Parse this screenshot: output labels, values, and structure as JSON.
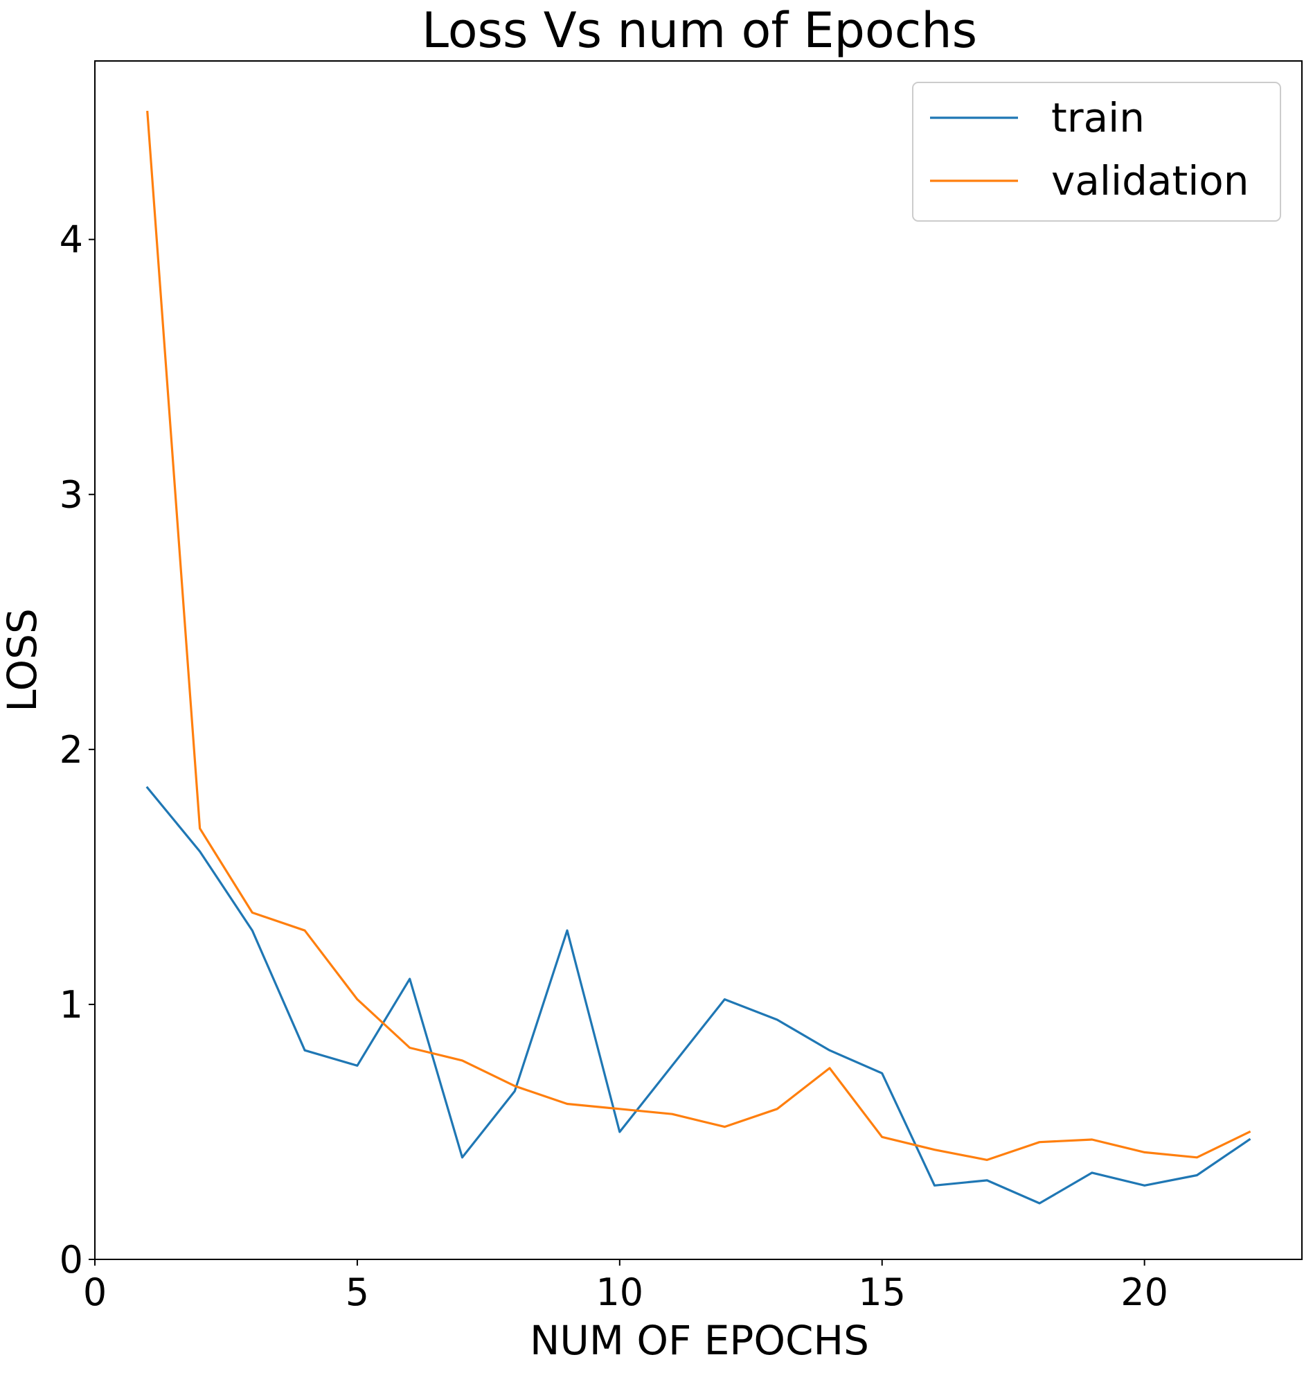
{
  "chart_data": {
    "type": "line",
    "title": "Loss Vs num of Epochs",
    "xlabel": "NUM OF EPOCHS",
    "ylabel": "LOSS",
    "xlim": [
      0,
      23.0
    ],
    "ylim": [
      0,
      4.7
    ],
    "xticks": [
      0,
      5,
      10,
      15,
      20
    ],
    "yticks": [
      0,
      1,
      2,
      3,
      4
    ],
    "grid": false,
    "legend_position": "top-right",
    "x": [
      1,
      2,
      3,
      4,
      5,
      6,
      7,
      8,
      9,
      10,
      11,
      12,
      13,
      14,
      15,
      16,
      17,
      18,
      19,
      20,
      21,
      22
    ],
    "series": [
      {
        "name": "train",
        "color": "#1f77b4",
        "values": [
          1.85,
          1.6,
          1.29,
          0.82,
          0.76,
          1.1,
          0.4,
          0.66,
          1.29,
          0.5,
          0.76,
          1.02,
          0.94,
          0.82,
          0.73,
          0.29,
          0.31,
          0.22,
          0.34,
          0.29,
          0.33,
          0.47
        ]
      },
      {
        "name": "validation",
        "color": "#ff7f0e",
        "values": [
          4.5,
          1.69,
          1.36,
          1.29,
          1.02,
          0.83,
          0.78,
          0.68,
          0.61,
          0.59,
          0.57,
          0.52,
          0.59,
          0.75,
          0.48,
          0.43,
          0.39,
          0.46,
          0.47,
          0.42,
          0.4,
          0.5
        ]
      }
    ]
  }
}
